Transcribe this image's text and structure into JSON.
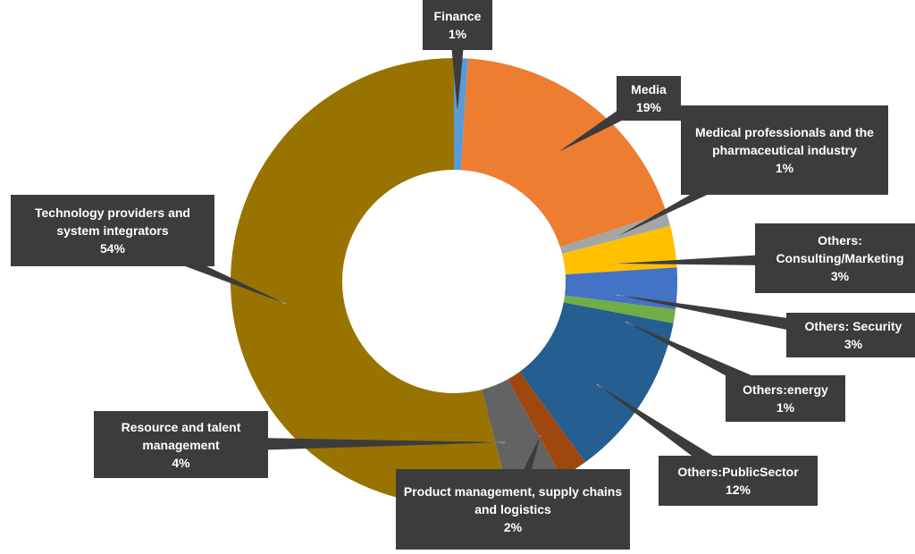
{
  "chart_data": {
    "type": "donut",
    "categories": [
      "Finance",
      "Media",
      "Medical professionals and the pharmaceutical industry",
      "Others: Consulting/Marketing",
      "Others: Security",
      "Others:energy",
      "Others:PublicSector",
      "Product management, supply chains and logistics",
      "Resource and talent management",
      "Technology providers and system integrators"
    ],
    "values": [
      1,
      19,
      1,
      3,
      3,
      1,
      12,
      2,
      4,
      54
    ],
    "value_labels": [
      "1%",
      "19%",
      "1%",
      "3%",
      "3%",
      "1%",
      "12%",
      "2%",
      "4%",
      "54%"
    ],
    "colors": [
      "#5b9bd5",
      "#ed7d31",
      "#a5a5a5",
      "#ffc000",
      "#4472c4",
      "#70ad47",
      "#255e91",
      "#9e480e",
      "#636363",
      "#997300"
    ]
  }
}
